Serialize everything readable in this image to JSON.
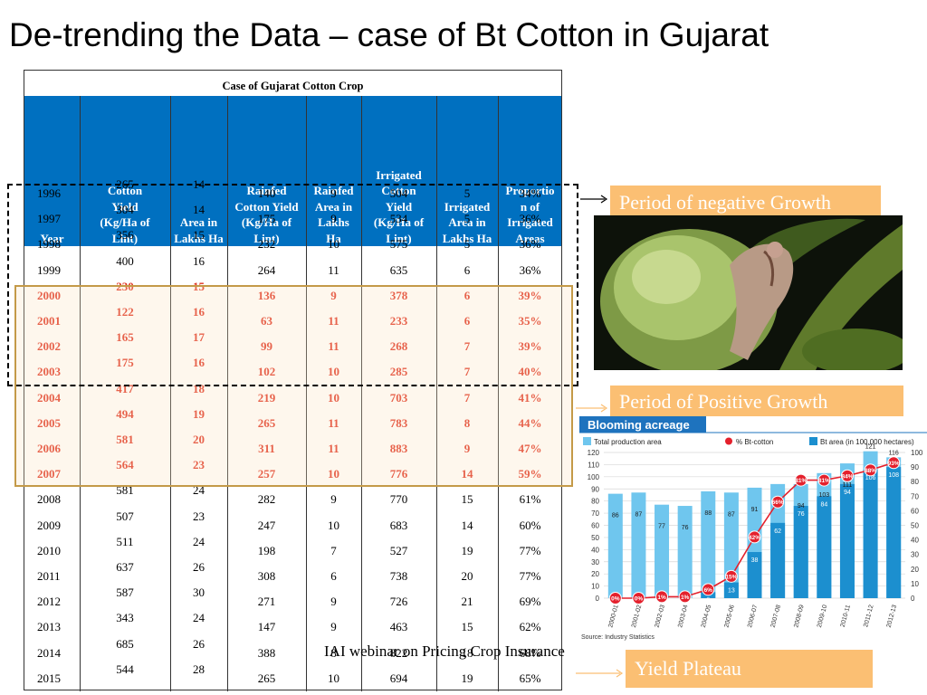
{
  "slide_title": "De-trending the Data – case of Bt Cotton in Gujarat",
  "table": {
    "caption": "Case of Gujarat Cotton Crop",
    "headers": [
      "Year",
      "Cotton\nYield\n(Kg/Ha of\nLint)",
      "Area in\nLakhs Ha",
      "Rainfed\nCotton Yield\n(Kg/Ha of\nLint)",
      "Rainfed\nArea in\nLakhs\nHa",
      "Irrigated\nCotton\nYield\n(Kg/Ha of\nLint)",
      "Irrigated\nArea in\nLakhs Ha",
      "Proportio\nn of\nIrrigated\nAreas"
    ],
    "rows": [
      {
        "year": "1996",
        "yield": "265",
        "area": "14",
        "rainfed_yield": "140",
        "rainfed_area": "9",
        "irr_yield": "504",
        "irr_area": "5",
        "prop": "34%",
        "highlight": false
      },
      {
        "year": "1997",
        "yield": "304",
        "area": "14",
        "rainfed_yield": "175",
        "rainfed_area": "9",
        "irr_yield": "534",
        "irr_area": "5",
        "prop": "36%",
        "highlight": false
      },
      {
        "year": "1998",
        "yield": "356",
        "area": "15",
        "rainfed_yield": "232",
        "rainfed_area": "10",
        "irr_yield": "575",
        "irr_area": "5",
        "prop": "36%",
        "highlight": false
      },
      {
        "year": "1999",
        "yield": "400",
        "area": "16",
        "rainfed_yield": "264",
        "rainfed_area": "11",
        "irr_yield": "635",
        "irr_area": "6",
        "prop": "36%",
        "highlight": false
      },
      {
        "year": "2000",
        "yield": "230",
        "area": "15",
        "rainfed_yield": "136",
        "rainfed_area": "9",
        "irr_yield": "378",
        "irr_area": "6",
        "prop": "39%",
        "highlight": true
      },
      {
        "year": "2001",
        "yield": "122",
        "area": "16",
        "rainfed_yield": "63",
        "rainfed_area": "11",
        "irr_yield": "233",
        "irr_area": "6",
        "prop": "35%",
        "highlight": true
      },
      {
        "year": "2002",
        "yield": "165",
        "area": "17",
        "rainfed_yield": "99",
        "rainfed_area": "11",
        "irr_yield": "268",
        "irr_area": "7",
        "prop": "39%",
        "highlight": true
      },
      {
        "year": "2003",
        "yield": "175",
        "area": "16",
        "rainfed_yield": "102",
        "rainfed_area": "10",
        "irr_yield": "285",
        "irr_area": "7",
        "prop": "40%",
        "highlight": true
      },
      {
        "year": "2004",
        "yield": "417",
        "area": "18",
        "rainfed_yield": "219",
        "rainfed_area": "10",
        "irr_yield": "703",
        "irr_area": "7",
        "prop": "41%",
        "highlight": true
      },
      {
        "year": "2005",
        "yield": "494",
        "area": "19",
        "rainfed_yield": "265",
        "rainfed_area": "11",
        "irr_yield": "783",
        "irr_area": "8",
        "prop": "44%",
        "highlight": true
      },
      {
        "year": "2006",
        "yield": "581",
        "area": "20",
        "rainfed_yield": "311",
        "rainfed_area": "11",
        "irr_yield": "883",
        "irr_area": "9",
        "prop": "47%",
        "highlight": true
      },
      {
        "year": "2007",
        "yield": "564",
        "area": "23",
        "rainfed_yield": "257",
        "rainfed_area": "10",
        "irr_yield": "776",
        "irr_area": "14",
        "prop": "59%",
        "highlight": true
      },
      {
        "year": "2008",
        "yield": "581",
        "area": "24",
        "rainfed_yield": "282",
        "rainfed_area": "9",
        "irr_yield": "770",
        "irr_area": "15",
        "prop": "61%",
        "highlight": false
      },
      {
        "year": "2009",
        "yield": "507",
        "area": "23",
        "rainfed_yield": "247",
        "rainfed_area": "10",
        "irr_yield": "683",
        "irr_area": "14",
        "prop": "60%",
        "highlight": false
      },
      {
        "year": "2010",
        "yield": "511",
        "area": "24",
        "rainfed_yield": "198",
        "rainfed_area": "7",
        "irr_yield": "527",
        "irr_area": "19",
        "prop": "77%",
        "highlight": false
      },
      {
        "year": "2011",
        "yield": "637",
        "area": "26",
        "rainfed_yield": "308",
        "rainfed_area": "6",
        "irr_yield": "738",
        "irr_area": "20",
        "prop": "77%",
        "highlight": false
      },
      {
        "year": "2012",
        "yield": "587",
        "area": "30",
        "rainfed_yield": "271",
        "rainfed_area": "9",
        "irr_yield": "726",
        "irr_area": "21",
        "prop": "69%",
        "highlight": false
      },
      {
        "year": "2013",
        "yield": "343",
        "area": "24",
        "rainfed_yield": "147",
        "rainfed_area": "9",
        "irr_yield": "463",
        "irr_area": "15",
        "prop": "62%",
        "highlight": false
      },
      {
        "year": "2014",
        "yield": "685",
        "area": "26",
        "rainfed_yield": "388",
        "rainfed_area": "8",
        "irr_yield": "822",
        "irr_area": "18",
        "prop": "68%",
        "highlight": false
      },
      {
        "year": "2015",
        "yield": "544",
        "area": "28",
        "rainfed_yield": "265",
        "rainfed_area": "10",
        "irr_yield": "694",
        "irr_area": "19",
        "prop": "65%",
        "highlight": false
      }
    ]
  },
  "callouts": {
    "negative": "Period of negative Growth",
    "positive": "Period of Positive Growth",
    "plateau": "Yield Plateau"
  },
  "footer_text": "IAI webinar on Pricing Crop Insurance",
  "colors": {
    "header_blue": "#0070c0",
    "highlight_red": "#e03220",
    "callout_orange": "#fbbf73",
    "box_gold": "#c49a48"
  },
  "photo_icon": "cotton-boll-bollworm-photo",
  "chart_data": {
    "type": "bar",
    "title": "Blooming acreage",
    "legend": [
      "Total production area",
      "% Bt-cotton",
      "Bt area (in 100,000 hectares)"
    ],
    "legend_position": "top",
    "categories": [
      "2000-01",
      "2001-02",
      "2002-03",
      "2003-04",
      "2004-05",
      "2005-06",
      "2006-07",
      "2007-08",
      "2008-09",
      "2009-10",
      "2010-11",
      "2011-12",
      "2012-13"
    ],
    "series": [
      {
        "name": "Total production area",
        "values": [
          86,
          87,
          77,
          76,
          88,
          87,
          91,
          94,
          94,
          103,
          111,
          121,
          116
        ]
      },
      {
        "name": "Bt area (in 100,000 hectares)",
        "values": [
          null,
          null,
          null,
          null,
          5,
          13,
          38,
          62,
          76,
          84,
          94,
          106,
          108
        ]
      },
      {
        "name": "% Bt-cotton",
        "values": [
          0,
          0,
          1,
          1,
          6,
          15,
          42,
          66,
          81,
          81,
          84,
          88,
          93
        ]
      }
    ],
    "ylim_left": [
      0,
      120
    ],
    "ylim_right": [
      0,
      100
    ],
    "yticks_left": [
      "120",
      "110",
      "100",
      "90",
      "80",
      "70",
      "60",
      "50",
      "40",
      "30",
      "20",
      "10",
      "0"
    ],
    "yticks_right": [
      "100",
      "90",
      "80",
      "70",
      "60",
      "50",
      "40",
      "30",
      "20",
      "10",
      "0"
    ],
    "source": "Source: Industry Statistics",
    "grid": true,
    "colors": {
      "total": "#6fc6ee",
      "bt": "#1c8fcf",
      "pct": "#e4202c",
      "title_bg": "#1e73be"
    }
  }
}
